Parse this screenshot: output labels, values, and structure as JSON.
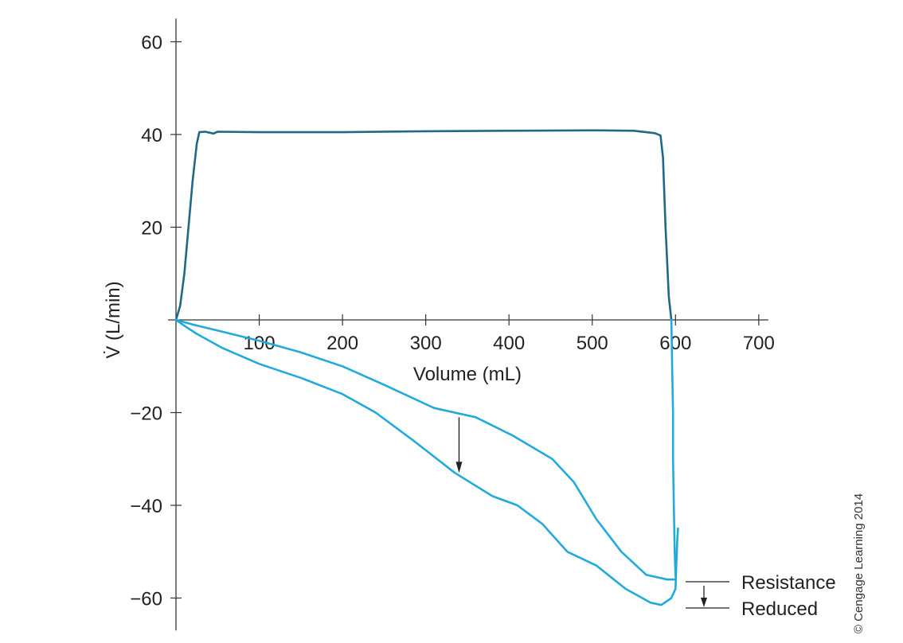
{
  "chart_data": {
    "type": "line",
    "xlabel": "Volume (mL)",
    "ylabel": "V̇ (L/min)",
    "xlim": [
      0,
      700
    ],
    "ylim": [
      -67,
      65
    ],
    "x_ticks": [
      100,
      200,
      300,
      400,
      500,
      600,
      700
    ],
    "x_tick_labels": [
      "100",
      "200",
      "300",
      "400",
      "500",
      "600",
      "700"
    ],
    "y_ticks": [
      60,
      40,
      20,
      -20,
      -40,
      -60
    ],
    "y_tick_labels": [
      "60",
      "40",
      "20",
      "−20",
      "−40",
      "−60"
    ],
    "grid": false,
    "legend": {
      "placement": "bottom-right",
      "labels": [
        "Resistance",
        "Reduced"
      ]
    },
    "series": [
      {
        "color": "#1d6a86",
        "points": [
          [
            0,
            0
          ],
          [
            5,
            3
          ],
          [
            10,
            10
          ],
          [
            15,
            20
          ],
          [
            20,
            30
          ],
          [
            25,
            38
          ],
          [
            28,
            40.5
          ],
          [
            35,
            40.6
          ],
          [
            45,
            40.2
          ],
          [
            50,
            40.6
          ],
          [
            100,
            40.5
          ],
          [
            200,
            40.5
          ],
          [
            300,
            40.7
          ],
          [
            400,
            40.8
          ],
          [
            500,
            40.9
          ],
          [
            550,
            40.8
          ],
          [
            575,
            40.3
          ],
          [
            582,
            39.8
          ],
          [
            585,
            35
          ],
          [
            588,
            20
          ],
          [
            592,
            5
          ],
          [
            595,
            0
          ]
        ]
      },
      {
        "color": "#22aadc",
        "points": [
          [
            595,
            0
          ],
          [
            596,
            -10
          ],
          [
            597,
            -20
          ],
          [
            597,
            -30
          ],
          [
            598,
            -40
          ],
          [
            599,
            -50
          ],
          [
            600,
            -55
          ],
          [
            600.5,
            -56
          ],
          [
            590,
            -56
          ],
          [
            565,
            -55
          ],
          [
            535,
            -50
          ],
          [
            505,
            -43
          ],
          [
            478,
            -35
          ],
          [
            452,
            -30
          ],
          [
            405,
            -25
          ],
          [
            360,
            -21
          ],
          [
            310,
            -19
          ],
          [
            250,
            -14
          ],
          [
            200,
            -10
          ],
          [
            150,
            -7
          ],
          [
            100,
            -4.5
          ],
          [
            55,
            -2.5
          ],
          [
            20,
            -1
          ],
          [
            0,
            0
          ]
        ]
      },
      {
        "color": "#22aadc",
        "points": [
          [
            0,
            0
          ],
          [
            12,
            -1.5
          ],
          [
            25,
            -3
          ],
          [
            55,
            -6
          ],
          [
            100,
            -9.5
          ],
          [
            150,
            -12.5
          ],
          [
            200,
            -16
          ],
          [
            240,
            -20
          ],
          [
            285,
            -26
          ],
          [
            335,
            -33
          ],
          [
            380,
            -38
          ],
          [
            410,
            -40
          ],
          [
            440,
            -44
          ],
          [
            470,
            -50
          ],
          [
            505,
            -53
          ],
          [
            540,
            -58
          ],
          [
            570,
            -61
          ],
          [
            583,
            -61.5
          ],
          [
            595,
            -60
          ],
          [
            600,
            -58
          ],
          [
            601,
            -53
          ],
          [
            602,
            -48
          ],
          [
            603,
            -45
          ]
        ]
      }
    ],
    "annotations": [
      {
        "type": "arrow",
        "from": [
          340,
          -21
        ],
        "to": [
          340,
          -33
        ]
      }
    ]
  },
  "credit": "© Cengage Learning 2014"
}
